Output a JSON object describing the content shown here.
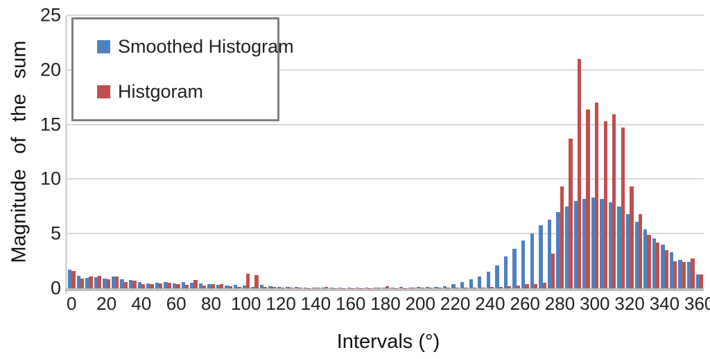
{
  "chart_data": {
    "type": "bar",
    "title": "",
    "xlabel": "Intervals (°)",
    "ylabel": "Magnitude of the sum",
    "ylim": [
      0,
      25
    ],
    "yticks": [
      0,
      5,
      10,
      15,
      20,
      25
    ],
    "x_label_step_degrees": 20,
    "bin_width_degrees": 5,
    "grid": "horizontal",
    "legend_position": "top-left-inside",
    "categories": [
      0,
      5,
      10,
      15,
      20,
      25,
      30,
      35,
      40,
      45,
      50,
      55,
      60,
      65,
      70,
      75,
      80,
      85,
      90,
      95,
      100,
      105,
      110,
      115,
      120,
      125,
      130,
      135,
      140,
      145,
      150,
      155,
      160,
      165,
      170,
      175,
      180,
      185,
      190,
      195,
      200,
      205,
      210,
      215,
      220,
      225,
      230,
      235,
      240,
      245,
      250,
      255,
      260,
      265,
      270,
      275,
      280,
      285,
      290,
      295,
      300,
      305,
      310,
      315,
      320,
      325,
      330,
      335,
      340,
      345,
      350,
      355,
      360
    ],
    "series": [
      {
        "name": "Smoothed Histogram",
        "color": "#4F81BD",
        "values": [
          1.7,
          1.15,
          0.95,
          1.0,
          0.9,
          1.1,
          0.85,
          0.75,
          0.6,
          0.45,
          0.5,
          0.6,
          0.45,
          0.55,
          0.5,
          0.45,
          0.4,
          0.3,
          0.25,
          0.3,
          0.28,
          0.15,
          0.3,
          0.2,
          0.15,
          0.1,
          0.1,
          0.08,
          0.05,
          0.05,
          0.05,
          0.04,
          0.04,
          0.04,
          0.04,
          0.05,
          0.05,
          0.08,
          0.1,
          0.08,
          0.1,
          0.12,
          0.15,
          0.2,
          0.4,
          0.55,
          0.8,
          1.1,
          1.5,
          2.1,
          2.9,
          3.6,
          4.4,
          5.0,
          5.8,
          6.3,
          7.0,
          7.5,
          8.0,
          8.2,
          8.3,
          8.2,
          7.9,
          7.5,
          6.8,
          6.1,
          5.4,
          4.6,
          4.0,
          3.3,
          2.6,
          2.4,
          1.3
        ]
      },
      {
        "name": "Histgoram",
        "color": "#C0504D",
        "values": [
          1.6,
          0.9,
          1.1,
          1.15,
          0.8,
          1.1,
          0.6,
          0.7,
          0.4,
          0.35,
          0.45,
          0.5,
          0.4,
          0.3,
          0.75,
          0.25,
          0.4,
          0.35,
          0.2,
          0.15,
          1.35,
          1.2,
          0.1,
          0.1,
          0.08,
          0.05,
          0.05,
          0.03,
          0.05,
          0.15,
          0.03,
          0.03,
          0.03,
          0.03,
          0.03,
          0.05,
          0.2,
          0.03,
          0.03,
          0.05,
          0.05,
          0.05,
          0.05,
          0.05,
          0.05,
          0.05,
          0.08,
          0.08,
          0.1,
          0.1,
          0.2,
          0.25,
          0.35,
          0.35,
          0.5,
          3.2,
          9.3,
          13.7,
          21,
          16.4,
          17,
          15.3,
          15.9,
          14.7,
          9.3,
          6.8,
          4.9,
          4.2,
          3.5,
          2.5,
          2.4,
          2.7,
          1.3
        ]
      }
    ]
  },
  "colors": {
    "background": "#FFFFFF",
    "gridline": "#D9D9D9",
    "axis_line": "#BFBFBF",
    "legend_border": "#7F7F7F",
    "text": "#212121"
  }
}
